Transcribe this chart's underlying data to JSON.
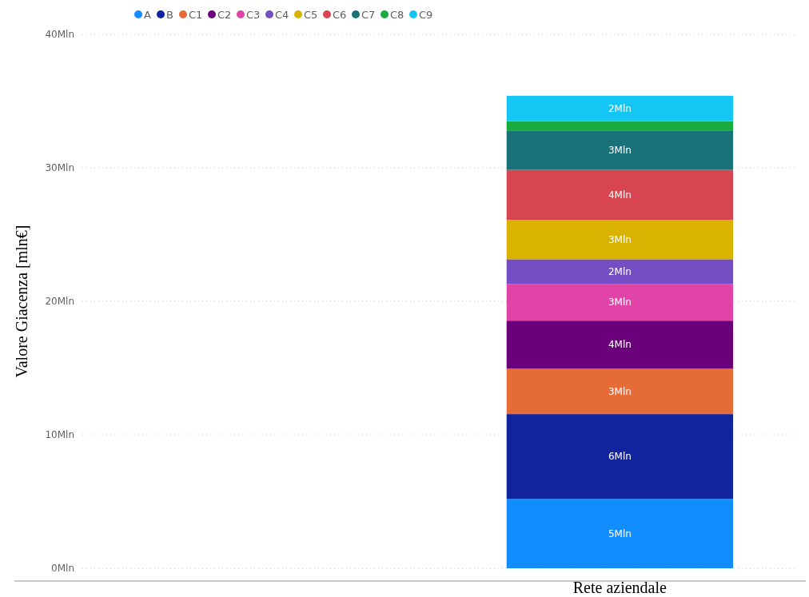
{
  "chart_data": {
    "type": "bar",
    "stacked": true,
    "ylabel": "Valore Giacenza [mln€]",
    "categories": [
      null,
      "Rete aziendale"
    ],
    "ylim": [
      0,
      40
    ],
    "yticks": [
      {
        "value": 0,
        "label": "0Mln"
      },
      {
        "value": 10,
        "label": "10Mln"
      },
      {
        "value": 20,
        "label": "20Mln"
      },
      {
        "value": 30,
        "label": "30Mln"
      },
      {
        "value": 40,
        "label": "40Mln"
      }
    ],
    "grid": "y",
    "legend": "top left",
    "series": [
      {
        "name": "A",
        "color": "#118dff",
        "values": [
          null,
          5.2
        ],
        "value_labels": [
          null,
          "5Mln"
        ]
      },
      {
        "name": "B",
        "color": "#12239e",
        "values": [
          null,
          6.35
        ],
        "value_labels": [
          null,
          "6Mln"
        ]
      },
      {
        "name": "C1",
        "color": "#e66c37",
        "values": [
          null,
          3.4
        ],
        "value_labels": [
          null,
          "3Mln"
        ]
      },
      {
        "name": "C2",
        "color": "#6b007b",
        "values": [
          null,
          3.6
        ],
        "value_labels": [
          null,
          "4Mln"
        ]
      },
      {
        "name": "C3",
        "color": "#e044a7",
        "values": [
          null,
          2.75
        ],
        "value_labels": [
          null,
          "3Mln"
        ]
      },
      {
        "name": "C4",
        "color": "#744ec2",
        "values": [
          null,
          1.85
        ],
        "value_labels": [
          null,
          "2Mln"
        ]
      },
      {
        "name": "C5",
        "color": "#d9b300",
        "values": [
          null,
          2.95
        ],
        "value_labels": [
          null,
          "3Mln"
        ]
      },
      {
        "name": "C6",
        "color": "#d64550",
        "values": [
          null,
          3.75
        ],
        "value_labels": [
          null,
          "4Mln"
        ]
      },
      {
        "name": "C7",
        "color": "#197278",
        "values": [
          null,
          2.95
        ],
        "value_labels": [
          null,
          "3Mln"
        ]
      },
      {
        "name": "C8",
        "color": "#1aab40",
        "values": [
          null,
          0.7
        ],
        "value_labels": [
          null,
          null
        ]
      },
      {
        "name": "C9",
        "color": "#15c6f4",
        "values": [
          null,
          1.9
        ],
        "value_labels": [
          null,
          "2Mln"
        ]
      }
    ]
  }
}
